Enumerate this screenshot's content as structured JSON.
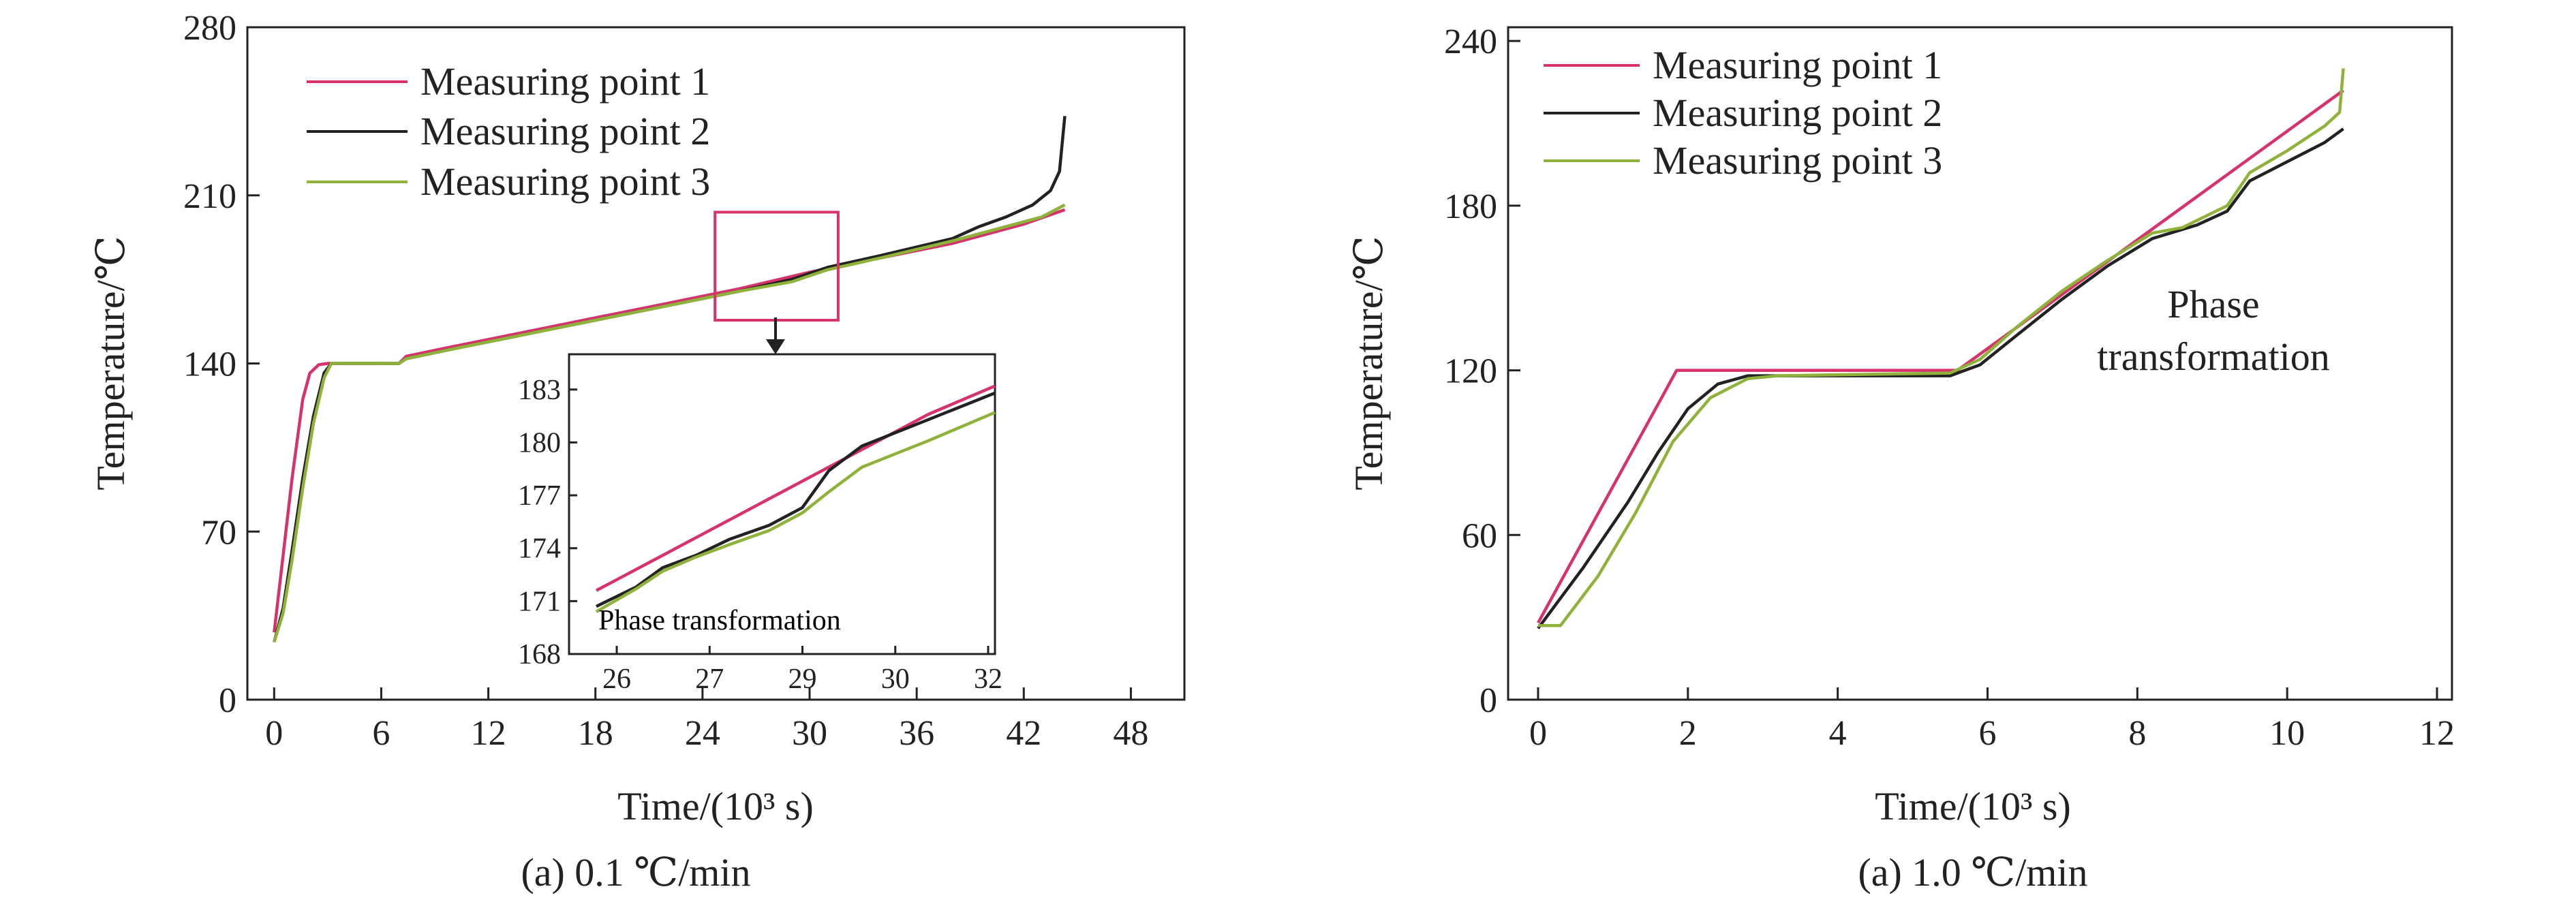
{
  "chart_data": [
    {
      "type": "line",
      "xlabel": "Time/(10³ s)",
      "ylabel": "Temperature/℃",
      "caption": "(a) 0.1 ℃/min",
      "xlim": [
        -1.5,
        51
      ],
      "ylim": [
        0,
        280
      ],
      "xticks": [
        0,
        6,
        12,
        18,
        24,
        30,
        36,
        42,
        48
      ],
      "yticks": [
        0,
        70,
        140,
        210,
        280
      ],
      "legend_position": "top-left",
      "series": [
        {
          "name": "Measuring point 1",
          "color": "#d6336c",
          "points": [
            [
              0,
              28
            ],
            [
              0.5,
              60
            ],
            [
              1,
              92
            ],
            [
              1.6,
              125
            ],
            [
              2,
              136
            ],
            [
              2.5,
              139.5
            ],
            [
              3,
              140
            ],
            [
              7,
              140
            ],
            [
              7.4,
              143
            ],
            [
              10,
              147
            ],
            [
              14,
              153
            ],
            [
              18,
              159
            ],
            [
              22,
              165
            ],
            [
              26,
              171
            ],
            [
              30,
              178
            ],
            [
              34,
              184
            ],
            [
              38,
              190
            ],
            [
              42,
              198
            ],
            [
              44.3,
              204
            ]
          ]
        },
        {
          "name": "Measuring point 2",
          "color": "#222222",
          "points": [
            [
              0,
              24
            ],
            [
              0.5,
              38
            ],
            [
              1,
              62
            ],
            [
              1.6,
              92
            ],
            [
              2.2,
              118
            ],
            [
              2.8,
              136
            ],
            [
              3.2,
              140
            ],
            [
              7,
              140
            ],
            [
              7.4,
              142
            ],
            [
              10,
              146
            ],
            [
              14,
              152
            ],
            [
              18,
              158
            ],
            [
              22,
              164
            ],
            [
              26,
              170
            ],
            [
              29,
              175
            ],
            [
              31,
              180
            ],
            [
              34,
              185
            ],
            [
              38,
              192
            ],
            [
              39.5,
              197
            ],
            [
              41,
              201
            ],
            [
              42.5,
              206
            ],
            [
              43.5,
              212
            ],
            [
              44,
              220
            ],
            [
              44.3,
              243
            ]
          ]
        },
        {
          "name": "Measuring point 3",
          "color": "#8fb23a",
          "points": [
            [
              0,
              24
            ],
            [
              0.5,
              36
            ],
            [
              1,
              58
            ],
            [
              1.6,
              88
            ],
            [
              2.2,
              115
            ],
            [
              2.8,
              134
            ],
            [
              3.2,
              140
            ],
            [
              7,
              140
            ],
            [
              7.4,
              142
            ],
            [
              10,
              146
            ],
            [
              14,
              152
            ],
            [
              18,
              158
            ],
            [
              22,
              164
            ],
            [
              26,
              170
            ],
            [
              29,
              174
            ],
            [
              31,
              179
            ],
            [
              34,
              184
            ],
            [
              38,
              191
            ],
            [
              41,
              197
            ],
            [
              43,
              201
            ],
            [
              44.3,
              206
            ]
          ]
        }
      ],
      "zoom_box": {
        "x": [
          24.7,
          31.6
        ],
        "y": [
          158,
          203
        ]
      },
      "inset": {
        "xticks": [
          "26",
          "27",
          "29",
          "30",
          "32"
        ],
        "yticks": [
          168,
          171,
          174,
          177,
          180,
          183
        ],
        "ylim": [
          168,
          185
        ],
        "annotation": "Phase transformation",
        "series": [
          {
            "color": "#d6336c",
            "points": [
              [
                0,
                171.6
              ],
              [
                1,
                173.6
              ],
              [
                2,
                175.6
              ],
              [
                3,
                177.6
              ],
              [
                4,
                179.6
              ],
              [
                5,
                181.6
              ],
              [
                6,
                183.2
              ]
            ]
          },
          {
            "color": "#222222",
            "points": [
              [
                0,
                170.7
              ],
              [
                0.6,
                171.8
              ],
              [
                1,
                172.9
              ],
              [
                1.5,
                173.6
              ],
              [
                2,
                174.5
              ],
              [
                2.6,
                175.3
              ],
              [
                3.1,
                176.3
              ],
              [
                3.5,
                178.4
              ],
              [
                4,
                179.8
              ],
              [
                5,
                181.3
              ],
              [
                6,
                182.8
              ]
            ]
          },
          {
            "color": "#8fb23a",
            "points": [
              [
                0,
                170.4
              ],
              [
                0.6,
                171.7
              ],
              [
                1,
                172.7
              ],
              [
                1.5,
                173.5
              ],
              [
                2,
                174.2
              ],
              [
                2.6,
                175
              ],
              [
                3.1,
                176
              ],
              [
                3.5,
                177.2
              ],
              [
                4,
                178.6
              ],
              [
                5,
                180.1
              ],
              [
                6,
                181.7
              ]
            ]
          }
        ]
      }
    },
    {
      "type": "line",
      "xlabel": "Time/(10³ s)",
      "ylabel": "Temperature/℃",
      "caption": "(a) 1.0 ℃/min",
      "xlim": [
        -0.4,
        12.2
      ],
      "ylim": [
        0,
        245
      ],
      "xticks": [
        0,
        2,
        4,
        6,
        8,
        10,
        12
      ],
      "yticks": [
        0,
        60,
        120,
        180,
        240
      ],
      "legend_position": "top-left",
      "annotation": [
        "Phase",
        "transformation"
      ],
      "series": [
        {
          "name": "Measuring point 1",
          "color": "#d6336c",
          "points": [
            [
              0,
              28
            ],
            [
              1.85,
              120
            ],
            [
              5.6,
              120
            ],
            [
              10.75,
              222
            ]
          ]
        },
        {
          "name": "Measuring point 2",
          "color": "#222222",
          "points": [
            [
              0,
              26
            ],
            [
              0.6,
              48
            ],
            [
              1.2,
              72
            ],
            [
              1.6,
              90
            ],
            [
              2,
              106
            ],
            [
              2.4,
              115
            ],
            [
              2.8,
              118
            ],
            [
              5.5,
              118
            ],
            [
              5.9,
              122
            ],
            [
              6.4,
              133
            ],
            [
              7,
              146
            ],
            [
              7.6,
              158
            ],
            [
              8.2,
              168
            ],
            [
              8.8,
              173
            ],
            [
              9.2,
              178
            ],
            [
              9.5,
              189
            ],
            [
              10,
              196
            ],
            [
              10.5,
              203
            ],
            [
              10.75,
              208
            ]
          ]
        },
        {
          "name": "Measuring point 3",
          "color": "#8fb23a",
          "points": [
            [
              0,
              27
            ],
            [
              0.3,
              27
            ],
            [
              0.8,
              45
            ],
            [
              1.3,
              68
            ],
            [
              1.8,
              94
            ],
            [
              2.3,
              110
            ],
            [
              2.8,
              117
            ],
            [
              3.2,
              118
            ],
            [
              5.5,
              119
            ],
            [
              5.9,
              124
            ],
            [
              6.4,
              136
            ],
            [
              7,
              149
            ],
            [
              7.6,
              160
            ],
            [
              8.2,
              170
            ],
            [
              8.6,
              172
            ],
            [
              9.2,
              180
            ],
            [
              9.5,
              192
            ],
            [
              10,
              200
            ],
            [
              10.5,
              209
            ],
            [
              10.7,
              214
            ],
            [
              10.75,
              230
            ]
          ]
        }
      ]
    }
  ]
}
